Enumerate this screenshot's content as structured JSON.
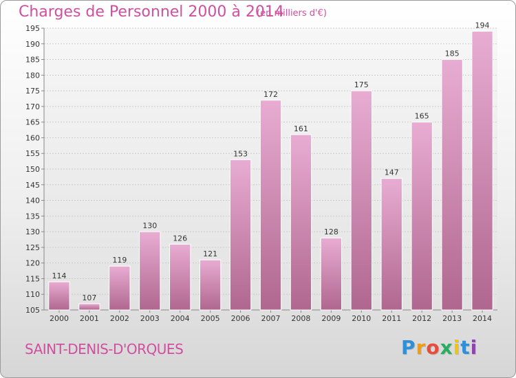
{
  "title": "Charges de Personnel 2000 à 2014",
  "subtitle": "(en milliers d'€)",
  "commune": "SAINT-DENIS-D'ORQUES",
  "logo": {
    "letters": [
      "P",
      "r",
      "o",
      "x",
      "i",
      "t",
      "i"
    ],
    "colors": [
      "#2f8fd8",
      "#f39c12",
      "#e74c3c",
      "#27ae60",
      "#f1c40f",
      "#2f8fd8",
      "#8e44ad"
    ]
  },
  "colors": {
    "accent": "#d04f9e",
    "bar_top": "#e8acd2",
    "bar_bottom": "#b0678f",
    "grid": "#cccccc"
  },
  "chart_data": {
    "type": "bar",
    "categories": [
      "2000",
      "2001",
      "2002",
      "2003",
      "2004",
      "2005",
      "2006",
      "2007",
      "2008",
      "2009",
      "2010",
      "2011",
      "2012",
      "2013",
      "2014"
    ],
    "values": [
      114,
      107,
      119,
      130,
      126,
      121,
      153,
      172,
      161,
      128,
      175,
      147,
      165,
      185,
      194
    ],
    "ylim": [
      105,
      195
    ],
    "yticks": [
      105,
      110,
      115,
      120,
      125,
      130,
      135,
      140,
      145,
      150,
      155,
      160,
      165,
      170,
      175,
      180,
      185,
      190,
      195
    ],
    "grid": true,
    "legend": "none"
  }
}
